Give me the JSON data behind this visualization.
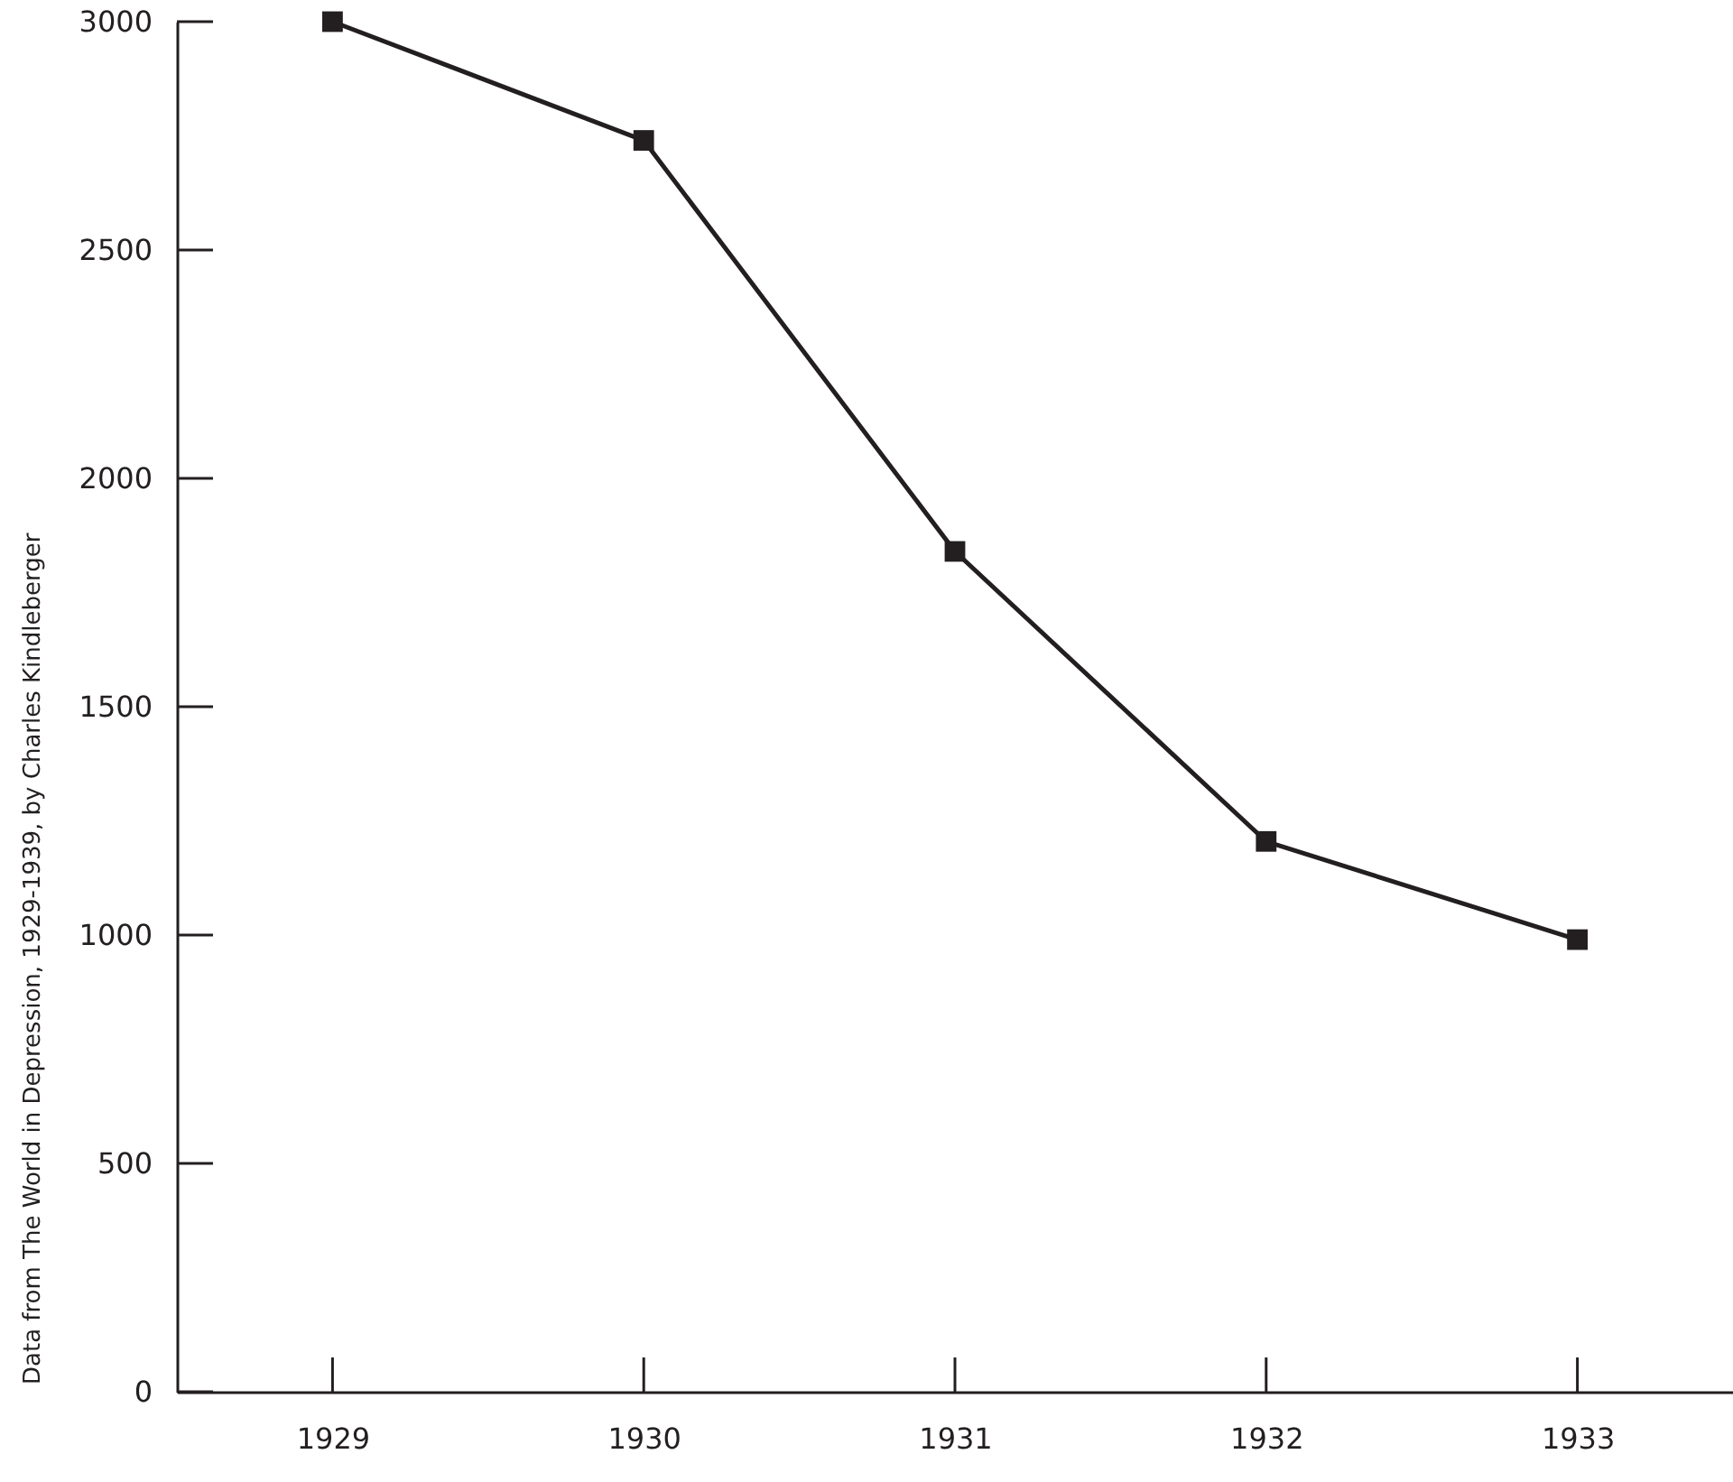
{
  "chart_data": {
    "type": "line",
    "categories": [
      "1929",
      "1930",
      "1931",
      "1932",
      "1933"
    ],
    "series": [
      {
        "color": "#231f20",
        "values": [
          3000,
          2740,
          1840,
          1205,
          990
        ]
      }
    ],
    "ylim": [
      0,
      3000
    ],
    "yticks": [
      0,
      500,
      1000,
      1500,
      2000,
      2500,
      3000
    ],
    "marker": "square",
    "line_style": "solid",
    "grid": false,
    "annotations": [
      "Data from The World in Depression, 1929-1939, by Charles Kindleberger"
    ]
  }
}
